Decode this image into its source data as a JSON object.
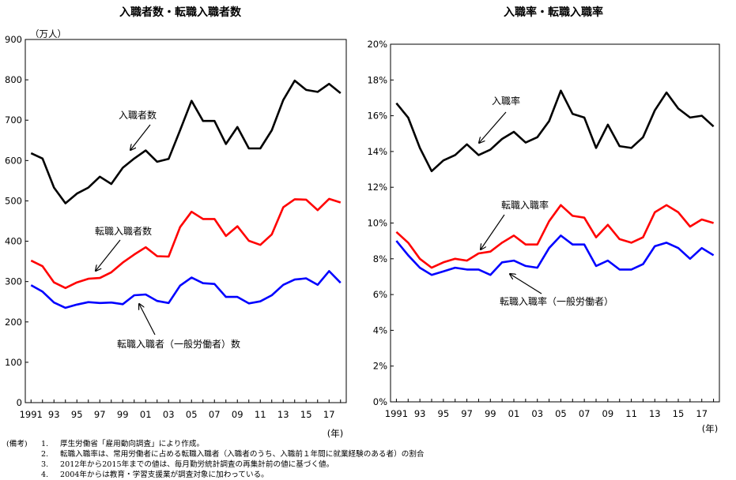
{
  "chart_data": [
    {
      "type": "line",
      "title": "入職者数・転職入職者数",
      "unit_label": "（万人）",
      "x_unit_label": "(年)",
      "x": [
        1991,
        1992,
        1993,
        1994,
        1995,
        1996,
        1997,
        1998,
        1999,
        2000,
        2001,
        2002,
        2003,
        2004,
        2005,
        2006,
        2007,
        2008,
        2009,
        2010,
        2011,
        2012,
        2013,
        2014,
        2015,
        2016,
        2017,
        2018
      ],
      "x_tick_labels": [
        "1991",
        "93",
        "95",
        "97",
        "99",
        "01",
        "03",
        "05",
        "07",
        "09",
        "11",
        "13",
        "15",
        "17"
      ],
      "ylim": [
        0,
        900
      ],
      "y_ticks": [
        0,
        100,
        200,
        300,
        400,
        500,
        600,
        700,
        800,
        900
      ],
      "y_tick_labels": [
        "0",
        "100",
        "200",
        "300",
        "400",
        "500",
        "600",
        "700",
        "800",
        "900"
      ],
      "series": [
        {
          "name": "入職者数",
          "color": "#000000",
          "values": [
            618,
            605,
            533,
            494,
            518,
            533,
            560,
            542,
            582,
            605,
            625,
            597,
            604,
            675,
            748,
            698,
            698,
            641,
            683,
            630,
            630,
            675,
            750,
            798,
            775,
            770,
            790,
            767
          ]
        },
        {
          "name": "転職入職者数",
          "color": "#ff0000",
          "values": [
            352,
            338,
            298,
            284,
            298,
            307,
            309,
            323,
            347,
            367,
            385,
            363,
            362,
            435,
            473,
            455,
            455,
            413,
            437,
            401,
            391,
            417,
            484,
            504,
            503,
            477,
            505,
            496
          ]
        },
        {
          "name": "転職入職者（一般労働者）数",
          "color": "#0000ff",
          "values": [
            291,
            275,
            248,
            235,
            243,
            249,
            247,
            248,
            244,
            266,
            268,
            252,
            247,
            290,
            310,
            296,
            294,
            262,
            262,
            246,
            251,
            266,
            292,
            305,
            308,
            292,
            326,
            297
          ]
        }
      ]
    },
    {
      "type": "line",
      "title": "入職率・転職入職率",
      "x_unit_label": "(年)",
      "x": [
        1991,
        1992,
        1993,
        1994,
        1995,
        1996,
        1997,
        1998,
        1999,
        2000,
        2001,
        2002,
        2003,
        2004,
        2005,
        2006,
        2007,
        2008,
        2009,
        2010,
        2011,
        2012,
        2013,
        2014,
        2015,
        2016,
        2017,
        2018
      ],
      "x_tick_labels": [
        "1991",
        "93",
        "95",
        "97",
        "99",
        "01",
        "03",
        "05",
        "07",
        "09",
        "11",
        "13",
        "15",
        "17"
      ],
      "ylim": [
        0,
        20
      ],
      "y_ticks": [
        0,
        2,
        4,
        6,
        8,
        10,
        12,
        14,
        16,
        18,
        20
      ],
      "y_tick_labels": [
        "0%",
        "2%",
        "4%",
        "6%",
        "8%",
        "10%",
        "12%",
        "14%",
        "16%",
        "18%",
        "20%"
      ],
      "series": [
        {
          "name": "入職率",
          "color": "#000000",
          "values": [
            16.7,
            15.9,
            14.2,
            12.9,
            13.5,
            13.8,
            14.4,
            13.8,
            14.1,
            14.7,
            15.1,
            14.5,
            14.8,
            15.7,
            17.4,
            16.1,
            15.9,
            14.2,
            15.5,
            14.3,
            14.2,
            14.8,
            16.3,
            17.3,
            16.4,
            15.9,
            16.0,
            15.4
          ]
        },
        {
          "name": "転職入職率",
          "color": "#ff0000",
          "values": [
            9.5,
            8.9,
            8.0,
            7.5,
            7.8,
            8.0,
            7.9,
            8.3,
            8.4,
            8.9,
            9.3,
            8.8,
            8.8,
            10.1,
            11.0,
            10.4,
            10.3,
            9.2,
            9.9,
            9.1,
            8.9,
            9.2,
            10.6,
            11.0,
            10.6,
            9.8,
            10.2,
            10.0
          ]
        },
        {
          "name": "転職入職率（一般労働者）",
          "color": "#0000ff",
          "values": [
            9.0,
            8.2,
            7.5,
            7.1,
            7.3,
            7.5,
            7.4,
            7.4,
            7.1,
            7.8,
            7.9,
            7.6,
            7.5,
            8.6,
            9.3,
            8.8,
            8.8,
            7.6,
            7.9,
            7.4,
            7.4,
            7.7,
            8.7,
            8.9,
            8.6,
            8.0,
            8.6,
            8.2
          ]
        }
      ]
    }
  ],
  "notes": {
    "heading": "(備考)",
    "items": [
      {
        "num": "1.",
        "text": "厚生労働省「雇用動向調査」により作成。"
      },
      {
        "num": "2.",
        "text": "転職入職率は、常用労働者に占める転職入職者（入職者のうち、入職前１年間に就業経験のある者）の割合"
      },
      {
        "num": "3.",
        "text": "2012年から2015年までの値は、毎月勤労統計調査の再集計前の値に基づく値。"
      },
      {
        "num": "4.",
        "text": "2004年からは教育・学習支援業が調査対象に加わっている。"
      }
    ]
  }
}
